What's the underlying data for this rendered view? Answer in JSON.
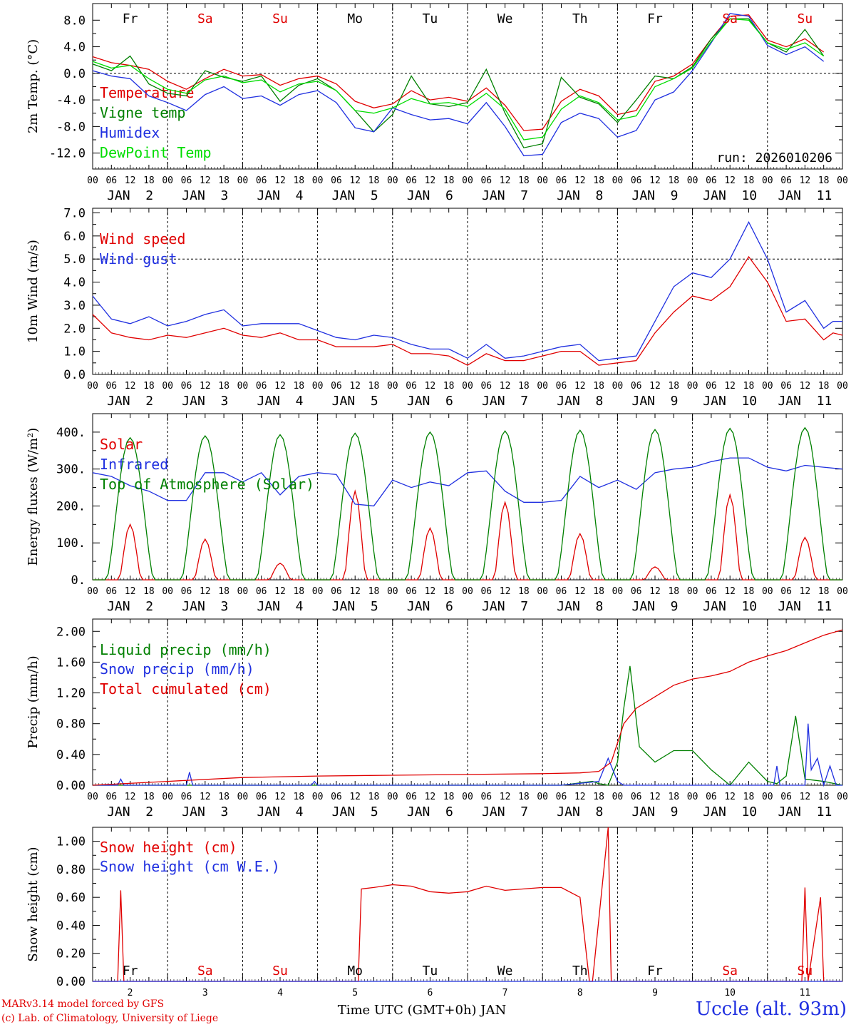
{
  "footer": {
    "model": "MARv3.14 model forced by GFS",
    "copyright": "(c) Lab. of Climatology, University of Liege",
    "station": "Uccle (alt. 93m)"
  },
  "axis": {
    "hour_ticks": [
      "00",
      "06",
      "12",
      "18"
    ],
    "date_labels": [
      "JAN  2",
      "JAN  3",
      "JAN  4",
      "JAN  5",
      "JAN  6",
      "JAN  7",
      "JAN  8",
      "JAN  9",
      "JAN 10",
      "JAN 11"
    ],
    "weekdays": [
      {
        "label": "Fr",
        "weekend": false
      },
      {
        "label": "Sa",
        "weekend": true
      },
      {
        "label": "Su",
        "weekend": true
      },
      {
        "label": "Mo",
        "weekend": false
      },
      {
        "label": "Tu",
        "weekend": false
      },
      {
        "label": "We",
        "weekend": false
      },
      {
        "label": "Th",
        "weekend": false
      },
      {
        "label": "Fr",
        "weekend": false
      },
      {
        "label": "Sa",
        "weekend": true
      },
      {
        "label": "Su",
        "weekend": true
      }
    ],
    "day_numbers": [
      "2",
      "3",
      "4",
      "5",
      "6",
      "7",
      "8",
      "9",
      "10",
      "11"
    ],
    "bottom_xlabel": "Time UTC (GMT+0h) JAN"
  },
  "chart_data": [
    {
      "type": "line",
      "ylabel": "2m Temp. (°C)",
      "ylim": [
        -14.4,
        10.5
      ],
      "yticks": [
        8.0,
        4.0,
        0.0,
        -4.0,
        -8.0,
        -12.0
      ],
      "ytick_labels": [
        "8.0",
        "4.0",
        "0.0",
        "-4.0",
        "-8.0",
        "-12.0"
      ],
      "refline": 0,
      "annotation": "run: 2026010206",
      "x_unit": "hours from JAN 2 00 UTC",
      "series": [
        {
          "name": "Temperature",
          "color": "#e00000",
          "x": [
            0,
            6,
            12,
            18,
            24,
            30,
            36,
            42,
            48,
            54,
            60,
            66,
            72,
            78,
            84,
            90,
            96,
            102,
            108,
            114,
            120,
            126,
            132,
            138,
            144,
            150,
            156,
            162,
            168,
            174,
            180,
            186,
            192,
            198,
            204,
            210,
            216,
            222,
            228,
            234
          ],
          "values": [
            2.5,
            1.6,
            1.2,
            0.6,
            -1.2,
            -2.4,
            -0.8,
            0.6,
            -0.4,
            -0.2,
            -1.8,
            -0.8,
            -0.4,
            -1.6,
            -4.2,
            -5.2,
            -4.6,
            -2.6,
            -4.0,
            -3.6,
            -4.2,
            -2.2,
            -4.8,
            -8.6,
            -8.4,
            -4.2,
            -2.4,
            -3.4,
            -6.2,
            -5.6,
            -1.2,
            -0.4,
            1.4,
            5.2,
            8.6,
            8.8,
            5.0,
            4.0,
            5.2,
            3.2
          ]
        },
        {
          "name": "Vigne temp",
          "color": "#008000",
          "x": [
            0,
            6,
            12,
            18,
            24,
            30,
            36,
            42,
            48,
            54,
            60,
            66,
            72,
            78,
            84,
            90,
            96,
            102,
            108,
            114,
            120,
            126,
            132,
            138,
            144,
            150,
            156,
            162,
            168,
            174,
            180,
            186,
            192,
            198,
            204,
            210,
            216,
            222,
            228,
            234
          ],
          "values": [
            1.4,
            0.4,
            2.6,
            -1.6,
            -3.0,
            -3.4,
            0.4,
            -0.6,
            -1.2,
            -0.4,
            -4.2,
            -1.8,
            -0.8,
            -2.6,
            -5.6,
            -8.8,
            -6.2,
            -0.4,
            -4.6,
            -5.0,
            -4.4,
            0.6,
            -6.0,
            -11.2,
            -10.6,
            -0.6,
            -3.6,
            -4.6,
            -7.4,
            -4.0,
            -0.4,
            -0.8,
            1.0,
            5.2,
            8.2,
            8.2,
            4.6,
            3.2,
            6.6,
            2.6
          ]
        },
        {
          "name": "Humidex",
          "color": "#2030e0",
          "x": [
            0,
            6,
            12,
            18,
            24,
            30,
            36,
            42,
            48,
            54,
            60,
            66,
            72,
            78,
            84,
            90,
            96,
            102,
            108,
            114,
            120,
            126,
            132,
            138,
            144,
            150,
            156,
            162,
            168,
            174,
            180,
            186,
            192,
            198,
            204,
            210,
            216,
            222,
            228,
            234
          ],
          "values": [
            0.4,
            -0.4,
            -0.8,
            -3.4,
            -4.4,
            -5.6,
            -3.2,
            -2.0,
            -3.8,
            -3.4,
            -4.8,
            -3.2,
            -2.6,
            -4.4,
            -8.2,
            -8.8,
            -5.2,
            -6.2,
            -7.0,
            -6.8,
            -7.6,
            -4.4,
            -8.0,
            -12.4,
            -12.2,
            -7.4,
            -6.0,
            -6.8,
            -9.6,
            -8.6,
            -4.0,
            -2.8,
            0.4,
            4.6,
            9.0,
            8.6,
            4.2,
            2.8,
            4.0,
            1.8
          ]
        },
        {
          "name": "DewPoint Temp",
          "color": "#00dd00",
          "x": [
            0,
            6,
            12,
            18,
            24,
            30,
            36,
            42,
            48,
            54,
            60,
            66,
            72,
            78,
            84,
            90,
            96,
            102,
            108,
            114,
            120,
            126,
            132,
            138,
            144,
            150,
            156,
            162,
            168,
            174,
            180,
            186,
            192,
            198,
            204,
            210,
            216,
            222,
            228,
            234
          ],
          "values": [
            1.8,
            0.8,
            1.2,
            -0.8,
            -2.4,
            -3.0,
            -1.0,
            -0.4,
            -1.4,
            -1.0,
            -2.8,
            -1.6,
            -1.2,
            -2.6,
            -5.6,
            -6.0,
            -5.2,
            -3.8,
            -4.6,
            -4.4,
            -5.0,
            -3.0,
            -5.4,
            -10.0,
            -9.6,
            -5.4,
            -3.4,
            -4.4,
            -7.0,
            -6.4,
            -2.0,
            -0.8,
            0.8,
            4.8,
            8.2,
            8.0,
            4.6,
            3.6,
            4.6,
            2.6
          ]
        }
      ]
    },
    {
      "type": "line",
      "ylabel": "10m Wind (m/s)",
      "ylim": [
        0,
        7.2
      ],
      "yticks": [
        7.0,
        6.0,
        5.0,
        4.0,
        3.0,
        2.0,
        1.0,
        0.0
      ],
      "ytick_labels": [
        "7.0",
        "6.0",
        "5.0",
        "4.0",
        "3.0",
        "2.0",
        "1.0",
        "0.0"
      ],
      "refline": 5,
      "series": [
        {
          "name": "Wind speed",
          "color": "#e00000",
          "x": [
            0,
            6,
            12,
            18,
            24,
            30,
            36,
            42,
            48,
            54,
            60,
            66,
            72,
            78,
            84,
            90,
            96,
            102,
            108,
            114,
            120,
            126,
            132,
            138,
            144,
            150,
            156,
            162,
            168,
            174,
            180,
            186,
            192,
            198,
            204,
            210,
            216,
            222,
            228,
            234,
            237,
            240
          ],
          "values": [
            2.6,
            1.8,
            1.6,
            1.5,
            1.7,
            1.6,
            1.8,
            2.0,
            1.7,
            1.6,
            1.8,
            1.5,
            1.5,
            1.2,
            1.2,
            1.2,
            1.3,
            0.9,
            0.9,
            0.8,
            0.4,
            0.9,
            0.6,
            0.6,
            0.8,
            1.0,
            1.0,
            0.4,
            0.5,
            0.6,
            1.8,
            2.7,
            3.4,
            3.2,
            3.8,
            5.1,
            4.0,
            2.3,
            2.4,
            1.5,
            1.8,
            1.7
          ]
        },
        {
          "name": "Wind gust",
          "color": "#2030e0",
          "x": [
            0,
            6,
            12,
            18,
            24,
            30,
            36,
            42,
            48,
            54,
            60,
            66,
            72,
            78,
            84,
            90,
            96,
            102,
            108,
            114,
            120,
            126,
            132,
            138,
            144,
            150,
            156,
            162,
            168,
            174,
            180,
            186,
            192,
            198,
            204,
            210,
            216,
            222,
            228,
            234,
            237,
            240
          ],
          "values": [
            3.4,
            2.4,
            2.2,
            2.5,
            2.1,
            2.3,
            2.6,
            2.8,
            2.1,
            2.2,
            2.2,
            2.2,
            1.9,
            1.6,
            1.5,
            1.7,
            1.6,
            1.3,
            1.1,
            1.1,
            0.7,
            1.3,
            0.7,
            0.8,
            1.0,
            1.2,
            1.3,
            0.6,
            0.7,
            0.8,
            2.3,
            3.8,
            4.4,
            4.2,
            5.0,
            6.6,
            5.0,
            2.7,
            3.2,
            2.0,
            2.3,
            2.3
          ]
        }
      ]
    },
    {
      "type": "line",
      "ylabel": "Energy fluxes (W/m²)",
      "ylim": [
        0,
        450
      ],
      "yticks": [
        400,
        300,
        200,
        100,
        0
      ],
      "ytick_labels": [
        "400.",
        "300.",
        "200.",
        "100.",
        "0."
      ],
      "series": [
        {
          "name": "Solar",
          "color": "#e00000",
          "peaks": [
            150,
            110,
            45,
            240,
            140,
            210,
            125,
            35,
            230,
            115
          ]
        },
        {
          "name": "Infrared",
          "color": "#2030e0",
          "x": [
            0,
            6,
            12,
            18,
            24,
            30,
            36,
            42,
            48,
            54,
            60,
            66,
            72,
            78,
            84,
            90,
            96,
            102,
            108,
            114,
            120,
            126,
            132,
            138,
            144,
            150,
            156,
            162,
            168,
            174,
            180,
            186,
            192,
            198,
            204,
            210,
            216,
            222,
            228,
            234,
            240
          ],
          "values": [
            290,
            280,
            255,
            240,
            215,
            215,
            290,
            290,
            265,
            290,
            230,
            280,
            290,
            285,
            205,
            200,
            270,
            250,
            265,
            255,
            290,
            295,
            240,
            210,
            210,
            215,
            280,
            250,
            270,
            245,
            290,
            300,
            305,
            320,
            330,
            330,
            305,
            295,
            310,
            305,
            300
          ]
        },
        {
          "name": "Top of Atmosphere (Solar)",
          "color": "#008000",
          "peaks": [
            385,
            390,
            393,
            397,
            400,
            403,
            405,
            407,
            410,
            412
          ]
        }
      ]
    },
    {
      "type": "line",
      "ylabel": "Precip (mm/h)",
      "ylim": [
        0,
        2.16
      ],
      "yticks": [
        2.0,
        1.6,
        1.2,
        0.8,
        0.4,
        0.0
      ],
      "ytick_labels": [
        "2.00",
        "1.60",
        "1.20",
        "0.80",
        "0.40",
        "0.00"
      ],
      "series": [
        {
          "name": "Liquid precip (mm/h)",
          "color": "#008000",
          "x": [
            0,
            150,
            160,
            162,
            165,
            168,
            170,
            172,
            175,
            180,
            186,
            192,
            198,
            204,
            210,
            216,
            219,
            222,
            225,
            228,
            234,
            240
          ],
          "values": [
            0,
            0,
            0.05,
            0.02,
            0,
            0.3,
            1.0,
            1.55,
            0.5,
            0.3,
            0.45,
            0.45,
            0.2,
            0,
            0.3,
            0.05,
            0.02,
            0.12,
            0.9,
            0.08,
            0.05,
            0
          ]
        },
        {
          "name": "Snow precip (mm/h)",
          "color": "#2030e0",
          "x": [
            0,
            8,
            9,
            10,
            30,
            31,
            32,
            70,
            71,
            72,
            150,
            162,
            165,
            168,
            170,
            200,
            210,
            218,
            219,
            220,
            228,
            229,
            230,
            232,
            234,
            236,
            238,
            240
          ],
          "values": [
            0,
            0,
            0.08,
            0,
            0,
            0.17,
            0,
            0,
            0.05,
            0,
            0,
            0.05,
            0.35,
            0.05,
            0,
            0,
            0,
            0,
            0.25,
            0,
            0,
            0.8,
            0.2,
            0.35,
            0,
            0.25,
            0,
            0
          ]
        },
        {
          "name": "Total cumulated (cm)",
          "color": "#e00000",
          "x": [
            0,
            24,
            48,
            72,
            96,
            120,
            144,
            156,
            162,
            166,
            170,
            174,
            180,
            186,
            192,
            198,
            204,
            210,
            216,
            222,
            228,
            234,
            240
          ],
          "values": [
            0,
            0.05,
            0.1,
            0.12,
            0.13,
            0.14,
            0.15,
            0.16,
            0.18,
            0.3,
            0.8,
            1.0,
            1.15,
            1.3,
            1.38,
            1.42,
            1.48,
            1.6,
            1.68,
            1.75,
            1.85,
            1.95,
            2.02
          ]
        }
      ]
    },
    {
      "type": "line",
      "ylabel": "Snow height (cm)",
      "ylim": [
        0,
        1.1
      ],
      "yticks": [
        1.0,
        0.8,
        0.6,
        0.4,
        0.2,
        0.0
      ],
      "ytick_labels": [
        "1.00",
        "0.80",
        "0.60",
        "0.40",
        "0.20",
        "0.00"
      ],
      "series": [
        {
          "name": "Snow height (cm)",
          "color": "#e00000",
          "x": [
            0,
            8,
            9,
            10,
            85,
            86,
            90,
            96,
            102,
            108,
            114,
            120,
            126,
            132,
            138,
            144,
            150,
            156,
            159,
            160,
            165,
            166,
            168,
            227,
            228,
            229,
            233,
            234,
            235,
            240
          ],
          "values": [
            0,
            0,
            0.65,
            0,
            0,
            0.66,
            0.67,
            0.69,
            0.68,
            0.64,
            0.63,
            0.64,
            0.68,
            0.65,
            0.66,
            0.67,
            0.67,
            0.6,
            0,
            0,
            1.1,
            0,
            0,
            0,
            0.67,
            0,
            0.6,
            0,
            0,
            0
          ]
        },
        {
          "name": "Snow height (cm W.E.)",
          "color": "#2030e0",
          "x": [
            0,
            240
          ],
          "values": [
            0,
            0
          ]
        }
      ]
    }
  ]
}
